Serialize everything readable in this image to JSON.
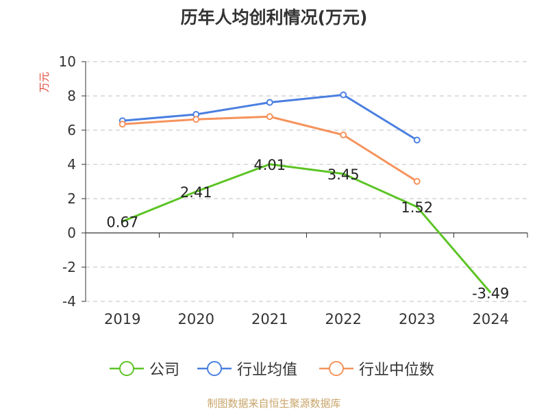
{
  "chart_data": {
    "type": "line",
    "title": "历年人均创利情况(万元)",
    "ylabel": "万元",
    "xlabel": "",
    "categories": [
      "2019",
      "2020",
      "2021",
      "2022",
      "2023",
      "2024"
    ],
    "ylim": [
      -4,
      10
    ],
    "yticks": [
      10,
      8,
      6,
      4,
      2,
      0,
      -2,
      -4
    ],
    "grid": true,
    "legend_position": "bottom",
    "series": [
      {
        "name": "公司",
        "color": "#5cc425",
        "values": [
          0.67,
          2.41,
          4.01,
          3.45,
          1.52,
          -3.49
        ],
        "labels": [
          "0.67",
          "2.41",
          "4.01",
          "3.45",
          "1.52",
          "-3.49"
        ]
      },
      {
        "name": "行业均值",
        "color": "#4a7fe0",
        "values": [
          6.55,
          6.92,
          7.62,
          8.06,
          5.42,
          null
        ]
      },
      {
        "name": "行业中位数",
        "color": "#f5935c",
        "values": [
          6.35,
          6.63,
          6.79,
          5.72,
          3.01,
          null
        ]
      }
    ]
  },
  "source": "制图数据来自恒生聚源数据库"
}
